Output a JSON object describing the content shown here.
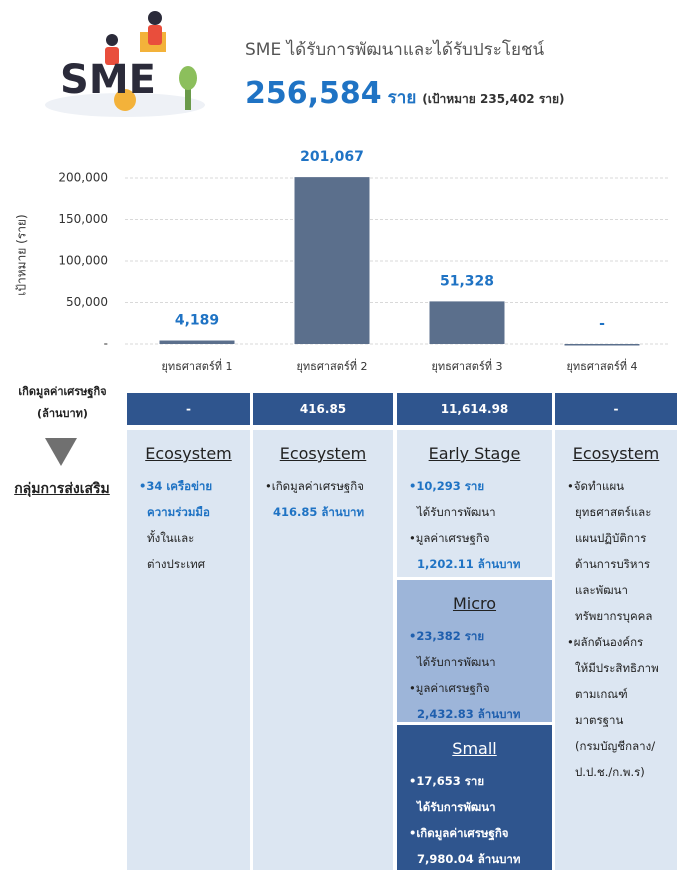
{
  "header": {
    "logo_text": "SME",
    "title": "SME ได้รับการพัฒนาและได้รับประโยชน์",
    "total": "256,584",
    "unit": "ราย",
    "target": "(เป้าหมาย 235,402 ราย)"
  },
  "chart_data": {
    "type": "bar",
    "ylabel": "เป้าหมาย (ราย)",
    "categories": [
      "ยุทธศาสตร์ที่ 1",
      "ยุทธศาสตร์ที่ 2",
      "ยุทธศาสตร์ที่ 3",
      "ยุทธศาสตร์ที่ 4"
    ],
    "values": [
      4189,
      201067,
      51328,
      0
    ],
    "value_labels": [
      "4,189",
      "201,067",
      "51,328",
      "-"
    ],
    "color": "#5b6f8c",
    "ylim": [
      0,
      200000
    ],
    "yticks": [
      {
        "value": 0,
        "label": "-"
      },
      {
        "value": 50000,
        "label": "50,000"
      },
      {
        "value": 100000,
        "label": "100,000"
      },
      {
        "value": 150000,
        "label": "150,000"
      },
      {
        "value": 200000,
        "label": "200,000"
      }
    ],
    "grid": true
  },
  "economic_value": {
    "label_lines": [
      "เกิดมูลค่าเศรษฐกิจ",
      "(ล้านบาท)"
    ],
    "values": [
      "-",
      "416.85",
      "11,614.98",
      "-"
    ]
  },
  "group_label": "กลุ่มการส่งเสริม",
  "panels": [
    {
      "heading": "Ecosystem",
      "lines": [
        "•34 เครือข่าย",
        "ความร่วมมือ",
        "ทั้งในและ",
        "ต่างประเทศ"
      ]
    },
    {
      "heading": "Ecosystem",
      "lines": [
        "•เกิดมูลค่าเศรษฐกิจ",
        "416.85 ล้านบาท"
      ]
    },
    {
      "heading": "Early Stage",
      "lines": [
        "•10,293 ราย",
        "ได้รับการพัฒนา",
        "•มูลค่าเศรษฐกิจ",
        "1,202.11 ล้านบาท"
      ]
    },
    {
      "heading": "Micro",
      "lines": [
        "•23,382 ราย",
        "ได้รับการพัฒนา",
        "•มูลค่าเศรษฐกิจ",
        "2,432.83 ล้านบาท"
      ]
    },
    {
      "heading": "Small",
      "lines": [
        "•17,653 ราย",
        "ได้รับการพัฒนา",
        "•เกิดมูลค่าเศรษฐกิจ",
        "7,980.04 ล้านบาท"
      ]
    },
    {
      "heading": "Ecosystem",
      "lines": [
        "•จัดทำแผน",
        "ยุทธศาสตร์และ",
        "แผนปฏิบัติการ",
        "ด้านการบริหาร",
        "และพัฒนา",
        "ทรัพยากรบุคคล",
        "•ผลักดันองค์กร",
        "ให้มีประสิทธิภาพ",
        "ตามเกณฑ์",
        "มาตรฐาน",
        "(กรมบัญชีกลาง/",
        "ป.ป.ช./ก.พ.ร)"
      ]
    }
  ]
}
